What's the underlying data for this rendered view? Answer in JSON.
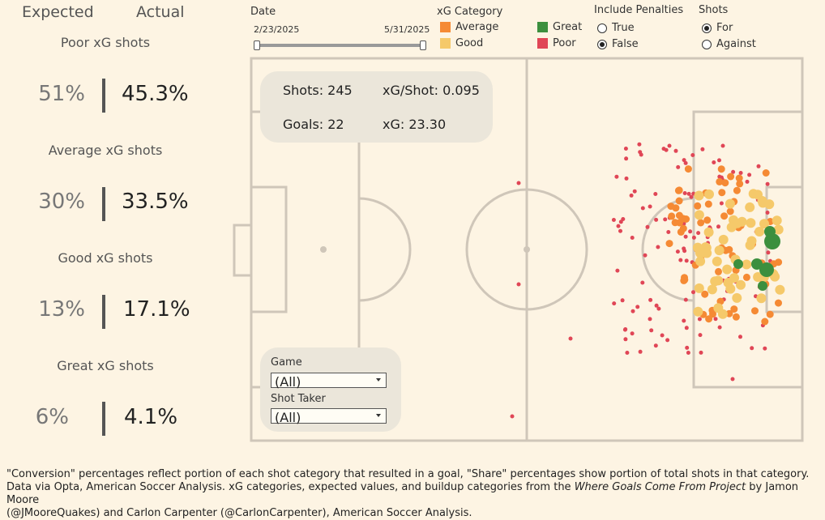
{
  "stats": {
    "expected_header": "Expected",
    "actual_header": "Actual",
    "categories": [
      {
        "title": "Poor xG shots",
        "expected": "51%",
        "actual": "45.3%"
      },
      {
        "title": "Average xG shots",
        "expected": "30%",
        "actual": "33.5%"
      },
      {
        "title": "Good xG shots",
        "expected": "13%",
        "actual": "17.1%"
      },
      {
        "title": "Great xG shots",
        "expected": "6%",
        "actual": "4.1%"
      }
    ]
  },
  "filters": {
    "date": {
      "label": "Date",
      "start": "2/23/2025",
      "end": "5/31/2025"
    },
    "xg_category": {
      "label": "xG Category",
      "items": [
        {
          "label": "Average",
          "color": "#f58a34"
        },
        {
          "label": "Great",
          "color": "#3c8f3e"
        },
        {
          "label": "Good",
          "color": "#f5c96a"
        },
        {
          "label": "Poor",
          "color": "#e04656"
        }
      ]
    },
    "penalties": {
      "label": "Include Penalties",
      "options": [
        "True",
        "False"
      ],
      "selected": "False"
    },
    "shots": {
      "label": "Shots",
      "options": [
        "For",
        "Against"
      ],
      "selected": "For"
    }
  },
  "summary": {
    "shots": "Shots: 245",
    "xg_per_shot": "xG/Shot: 0.095",
    "goals": "Goals: 22",
    "xg": "xG: 23.30"
  },
  "dropdowns": {
    "game_label": "Game",
    "game_value": "(All)",
    "shot_taker_label": "Shot Taker",
    "shot_taker_value": "(All)"
  },
  "footer": {
    "line1": "\"Conversion\" percentages reflect portion of each shot category that resulted in a goal, \"Share\" percentages show portion of total shots in that category.",
    "line2_a": "Data via Opta, American Soccer Analysis. xG categories, expected values, and buildup categories from the ",
    "line2_b": "Where Goals Come From Project",
    "line2_c": " by Jamon Moore",
    "line3": "(@JMooreQuakes) and Carlon Carpenter (@CarlonCarpenter), American Soccer Analysis."
  }
}
